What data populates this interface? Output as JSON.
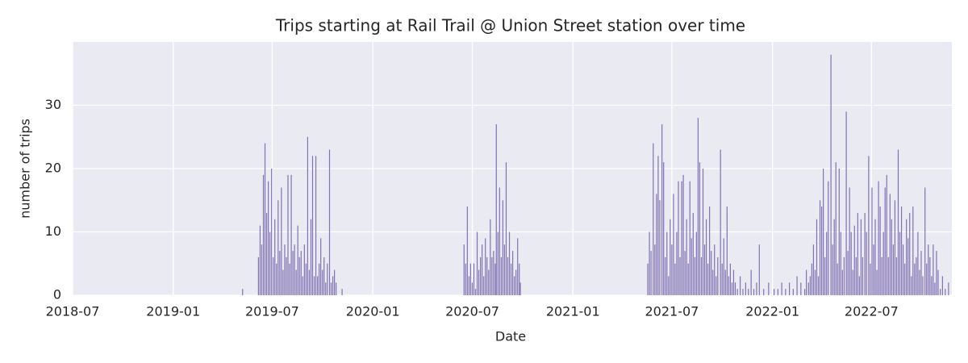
{
  "chart_data": {
    "type": "bar",
    "title": "Trips starting at Rail Trail @ Union Street station over time",
    "xlabel": "Date",
    "ylabel": "number of trips",
    "color": "#8172b3",
    "grid": true,
    "xlim": [
      "2018-07-01",
      "2022-11-25"
    ],
    "xticks": [
      "2018-07",
      "2019-01",
      "2019-07",
      "2020-01",
      "2020-07",
      "2021-01",
      "2021-07",
      "2022-01",
      "2022-07"
    ],
    "ylim": [
      0,
      40
    ],
    "yticks": [
      0,
      10,
      20,
      30
    ],
    "x": [
      "2019-05-07",
      "2019-06-05",
      "2019-06-08",
      "2019-06-11",
      "2019-06-14",
      "2019-06-17",
      "2019-06-20",
      "2019-06-23",
      "2019-06-26",
      "2019-06-29",
      "2019-07-02",
      "2019-07-05",
      "2019-07-08",
      "2019-07-11",
      "2019-07-14",
      "2019-07-17",
      "2019-07-20",
      "2019-07-23",
      "2019-07-26",
      "2019-07-29",
      "2019-08-01",
      "2019-08-04",
      "2019-08-07",
      "2019-08-10",
      "2019-08-13",
      "2019-08-16",
      "2019-08-19",
      "2019-08-22",
      "2019-08-25",
      "2019-08-28",
      "2019-08-31",
      "2019-09-03",
      "2019-09-06",
      "2019-09-09",
      "2019-09-12",
      "2019-09-15",
      "2019-09-18",
      "2019-09-21",
      "2019-09-24",
      "2019-09-27",
      "2019-09-30",
      "2019-10-03",
      "2019-10-06",
      "2019-10-09",
      "2019-10-13",
      "2019-10-16",
      "2019-10-19",
      "2019-10-22",
      "2019-10-25",
      "2019-11-05",
      "2020-06-15",
      "2020-06-18",
      "2020-06-21",
      "2020-06-24",
      "2020-06-27",
      "2020-06-30",
      "2020-07-03",
      "2020-07-06",
      "2020-07-09",
      "2020-07-12",
      "2020-07-15",
      "2020-07-18",
      "2020-07-21",
      "2020-07-24",
      "2020-07-27",
      "2020-07-30",
      "2020-08-02",
      "2020-08-05",
      "2020-08-08",
      "2020-08-11",
      "2020-08-13",
      "2020-08-16",
      "2020-08-19",
      "2020-08-22",
      "2020-08-25",
      "2020-08-28",
      "2020-08-31",
      "2020-09-03",
      "2020-09-06",
      "2020-09-09",
      "2020-09-12",
      "2020-09-15",
      "2020-09-18",
      "2020-09-21",
      "2020-09-24",
      "2020-09-26",
      "2021-05-17",
      "2021-05-20",
      "2021-05-23",
      "2021-05-27",
      "2021-05-30",
      "2021-06-02",
      "2021-06-05",
      "2021-06-08",
      "2021-06-12",
      "2021-06-15",
      "2021-06-18",
      "2021-06-21",
      "2021-06-24",
      "2021-06-27",
      "2021-06-30",
      "2021-07-03",
      "2021-07-06",
      "2021-07-09",
      "2021-07-12",
      "2021-07-15",
      "2021-07-18",
      "2021-07-21",
      "2021-07-24",
      "2021-07-27",
      "2021-07-30",
      "2021-08-02",
      "2021-08-05",
      "2021-08-08",
      "2021-08-11",
      "2021-08-14",
      "2021-08-17",
      "2021-08-20",
      "2021-08-23",
      "2021-08-26",
      "2021-08-29",
      "2021-09-01",
      "2021-09-04",
      "2021-09-07",
      "2021-09-10",
      "2021-09-13",
      "2021-09-16",
      "2021-09-19",
      "2021-09-22",
      "2021-09-27",
      "2021-09-30",
      "2021-10-03",
      "2021-10-06",
      "2021-10-09",
      "2021-10-12",
      "2021-10-15",
      "2021-10-18",
      "2021-10-21",
      "2021-10-24",
      "2021-10-28",
      "2021-11-02",
      "2021-11-07",
      "2021-11-12",
      "2021-11-17",
      "2021-11-22",
      "2021-11-27",
      "2021-12-02",
      "2021-12-07",
      "2021-12-15",
      "2021-12-24",
      "2022-01-03",
      "2022-01-10",
      "2022-01-17",
      "2022-01-24",
      "2022-01-31",
      "2022-02-07",
      "2022-02-14",
      "2022-02-21",
      "2022-02-28",
      "2022-03-03",
      "2022-03-07",
      "2022-03-10",
      "2022-03-13",
      "2022-03-16",
      "2022-03-19",
      "2022-03-22",
      "2022-03-25",
      "2022-03-28",
      "2022-03-31",
      "2022-04-03",
      "2022-04-06",
      "2022-04-09",
      "2022-04-12",
      "2022-04-17",
      "2022-04-20",
      "2022-04-23",
      "2022-04-26",
      "2022-04-29",
      "2022-05-02",
      "2022-05-05",
      "2022-05-08",
      "2022-05-11",
      "2022-05-15",
      "2022-05-18",
      "2022-05-21",
      "2022-05-24",
      "2022-05-27",
      "2022-05-30",
      "2022-06-02",
      "2022-06-05",
      "2022-06-08",
      "2022-06-11",
      "2022-06-14",
      "2022-06-18",
      "2022-06-21",
      "2022-06-25",
      "2022-06-28",
      "2022-07-01",
      "2022-07-04",
      "2022-07-07",
      "2022-07-10",
      "2022-07-13",
      "2022-07-16",
      "2022-07-19",
      "2022-07-22",
      "2022-07-25",
      "2022-07-28",
      "2022-07-31",
      "2022-08-03",
      "2022-08-06",
      "2022-08-09",
      "2022-08-12",
      "2022-08-15",
      "2022-08-18",
      "2022-08-21",
      "2022-08-24",
      "2022-08-27",
      "2022-08-30",
      "2022-09-02",
      "2022-09-05",
      "2022-09-08",
      "2022-09-11",
      "2022-09-14",
      "2022-09-17",
      "2022-09-20",
      "2022-09-23",
      "2022-09-26",
      "2022-09-29",
      "2022-10-02",
      "2022-10-06",
      "2022-10-09",
      "2022-10-12",
      "2022-10-15",
      "2022-10-18",
      "2022-10-21",
      "2022-10-24",
      "2022-10-27",
      "2022-10-30",
      "2022-11-03",
      "2022-11-07",
      "2022-11-12",
      "2022-11-18"
    ],
    "values": [
      1,
      6,
      11,
      8,
      19,
      24,
      13,
      18,
      10,
      20,
      6,
      12,
      5,
      15,
      7,
      17,
      4,
      8,
      6,
      19,
      5,
      19,
      7,
      8,
      4,
      11,
      6,
      7,
      3,
      8,
      5,
      25,
      4,
      12,
      22,
      3,
      22,
      3,
      5,
      9,
      4,
      6,
      2,
      5,
      23,
      2,
      3,
      4,
      2,
      1,
      8,
      5,
      14,
      3,
      5,
      2,
      5,
      1,
      10,
      4,
      6,
      8,
      3,
      9,
      6,
      4,
      12,
      6,
      7,
      5,
      27,
      10,
      17,
      6,
      15,
      8,
      21,
      6,
      10,
      5,
      7,
      3,
      4,
      9,
      5,
      2,
      5,
      10,
      7,
      24,
      8,
      16,
      22,
      15,
      27,
      21,
      6,
      10,
      3,
      12,
      8,
      16,
      5,
      10,
      18,
      6,
      18,
      19,
      7,
      12,
      5,
      18,
      9,
      13,
      6,
      10,
      28,
      21,
      6,
      20,
      8,
      12,
      5,
      14,
      7,
      4,
      8,
      3,
      6,
      23,
      5,
      9,
      4,
      14,
      3,
      5,
      2,
      4,
      2,
      1,
      3,
      1,
      2,
      1,
      4,
      1,
      2,
      8,
      1,
      2,
      1,
      1,
      2,
      1,
      2,
      1,
      3,
      2,
      1,
      4,
      2,
      3,
      5,
      8,
      4,
      12,
      3,
      15,
      14,
      20,
      6,
      10,
      18,
      38,
      8,
      12,
      21,
      5,
      20,
      10,
      4,
      6,
      29,
      7,
      17,
      10,
      4,
      11,
      6,
      13,
      3,
      12,
      6,
      13,
      10,
      22,
      5,
      17,
      8,
      12,
      4,
      18,
      14,
      6,
      10,
      17,
      19,
      6,
      16,
      12,
      8,
      15,
      6,
      23,
      10,
      14,
      8,
      5,
      12,
      9,
      13,
      3,
      14,
      5,
      6,
      10,
      4,
      7,
      3,
      17,
      5,
      8,
      6,
      3,
      8,
      2,
      7,
      4,
      1,
      3,
      1,
      2
    ]
  }
}
